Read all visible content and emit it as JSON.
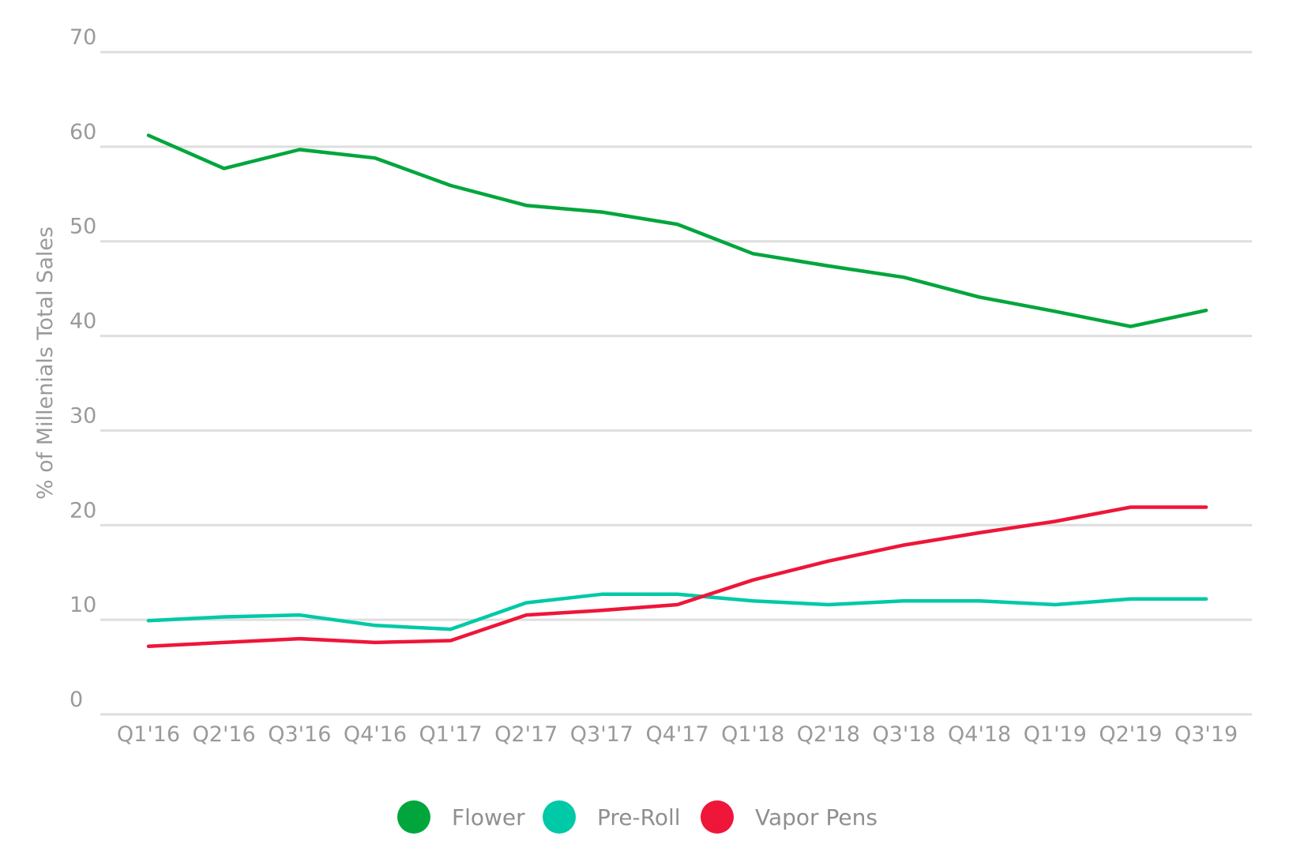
{
  "chart_data": {
    "type": "line",
    "title": "",
    "xlabel": "",
    "ylabel": "% of Millenials Total Sales",
    "ylim": [
      0,
      70
    ],
    "yticks": [
      0,
      10,
      20,
      30,
      40,
      50,
      60,
      70
    ],
    "grid": true,
    "legend_position": "bottom",
    "categories": [
      "Q1'16",
      "Q2'16",
      "Q3'16",
      "Q4'16",
      "Q1'17",
      "Q2'17",
      "Q3'17",
      "Q4'17",
      "Q1'18",
      "Q2'18",
      "Q3'18",
      "Q4'18",
      "Q1'19",
      "Q2'19",
      "Q3'19"
    ],
    "series": [
      {
        "name": "Flower",
        "color": "#00a63c",
        "values": [
          61.2,
          57.7,
          59.7,
          58.8,
          55.9,
          53.8,
          53.1,
          51.8,
          48.7,
          47.4,
          46.2,
          44.1,
          42.6,
          41.0,
          42.7
        ]
      },
      {
        "name": "Pre-Roll",
        "color": "#00c9a7",
        "values": [
          9.9,
          10.3,
          10.5,
          9.4,
          9.0,
          11.8,
          12.7,
          12.7,
          12.0,
          11.6,
          12.0,
          12.0,
          11.6,
          12.2,
          12.2
        ]
      },
      {
        "name": "Vapor Pens",
        "color": "#ee1639",
        "values": [
          7.2,
          7.6,
          8.0,
          7.6,
          7.8,
          10.5,
          11.0,
          11.6,
          14.2,
          16.2,
          17.9,
          19.2,
          20.4,
          21.9,
          21.9
        ]
      }
    ],
    "grid_color": "#dedede",
    "text_color": "#9a9a9a"
  }
}
